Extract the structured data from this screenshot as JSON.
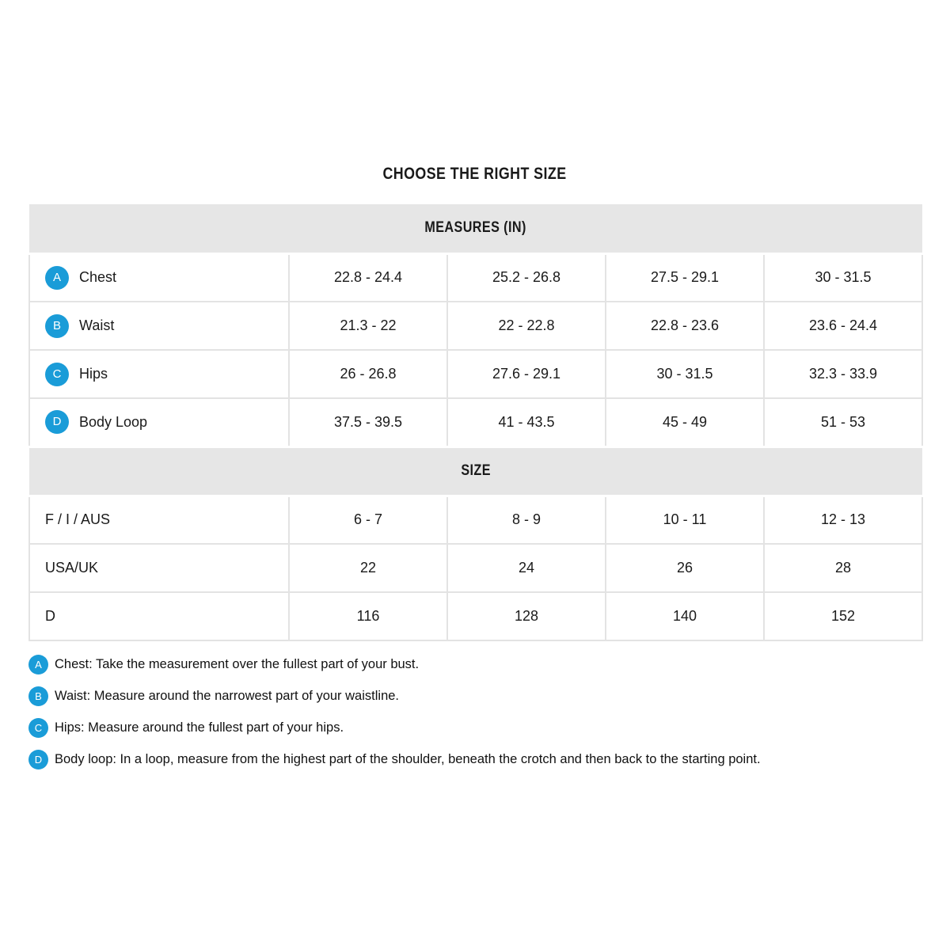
{
  "title": "CHOOSE THE RIGHT SIZE",
  "colors": {
    "accent_blue": "#1a9cd8",
    "section_header_bg": "#e6e6e6",
    "grid_border": "#e3e3e3",
    "text": "#1a1a1a"
  },
  "table": {
    "measures_header": "MEASURES (IN)",
    "size_header": "SIZE",
    "measure_rows": [
      {
        "badge": "A",
        "label": "Chest",
        "values": [
          "22.8 - 24.4",
          "25.2 - 26.8",
          "27.5 - 29.1",
          "30 - 31.5"
        ]
      },
      {
        "badge": "B",
        "label": "Waist",
        "values": [
          "21.3 - 22",
          "22 - 22.8",
          "22.8 - 23.6",
          "23.6 - 24.4"
        ]
      },
      {
        "badge": "C",
        "label": "Hips",
        "values": [
          "26 - 26.8",
          "27.6 - 29.1",
          "30 - 31.5",
          "32.3 - 33.9"
        ]
      },
      {
        "badge": "D",
        "label": "Body Loop",
        "values": [
          "37.5 - 39.5",
          "41 - 43.5",
          "45 - 49",
          "51 - 53"
        ]
      }
    ],
    "size_rows": [
      {
        "label": "F / I / AUS",
        "values": [
          "6 - 7",
          "8 - 9",
          "10 - 11",
          "12 - 13"
        ]
      },
      {
        "label": "USA/UK",
        "values": [
          "22",
          "24",
          "26",
          "28"
        ]
      },
      {
        "label": "D",
        "values": [
          "116",
          "128",
          "140",
          "152"
        ]
      }
    ]
  },
  "footnotes": [
    {
      "badge": "A",
      "text": "Chest: Take the measurement over the fullest part of your bust."
    },
    {
      "badge": "B",
      "text": "Waist: Measure around the narrowest part of your waistline."
    },
    {
      "badge": "C",
      "text": "Hips: Measure around the fullest part of your hips."
    },
    {
      "badge": "D",
      "text": "Body loop: In a loop, measure from the highest part of the shoulder, beneath the crotch and then back to the starting point."
    }
  ]
}
